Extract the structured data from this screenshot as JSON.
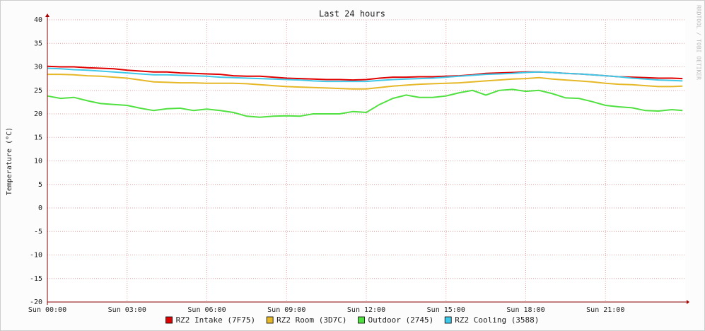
{
  "chart_data": {
    "type": "line",
    "title": "Last 24 hours",
    "y_label": "Temperature (°C)",
    "watermark": "RRDTOOL / TOBI OETIKER",
    "x": [
      0,
      0.5,
      1,
      1.5,
      2,
      2.5,
      3,
      3.5,
      4,
      4.5,
      5,
      5.5,
      6,
      6.5,
      7,
      7.5,
      8,
      8.5,
      9,
      9.5,
      10,
      10.5,
      11,
      11.5,
      12,
      12.5,
      13,
      13.5,
      14,
      14.5,
      15,
      15.5,
      16,
      16.5,
      17,
      17.5,
      18,
      18.5,
      19,
      19.5,
      20,
      20.5,
      21,
      21.5,
      22,
      22.5,
      23,
      23.5,
      23.9
    ],
    "series": [
      {
        "name": "RZ2 Intake (7F75)",
        "color": "#e00000",
        "values": [
          30.1,
          30.0,
          30.0,
          29.8,
          29.7,
          29.6,
          29.3,
          29.1,
          28.9,
          28.9,
          28.7,
          28.6,
          28.5,
          28.4,
          28.1,
          28.0,
          28.0,
          27.8,
          27.6,
          27.5,
          27.4,
          27.3,
          27.3,
          27.2,
          27.3,
          27.6,
          27.8,
          27.8,
          27.9,
          27.9,
          28.0,
          28.1,
          28.3,
          28.6,
          28.7,
          28.8,
          28.9,
          28.9,
          28.8,
          28.6,
          28.5,
          28.3,
          28.1,
          27.9,
          27.8,
          27.7,
          27.6,
          27.6,
          27.5
        ]
      },
      {
        "name": "RZ2 Room (3D7C)",
        "color": "#e6b828",
        "values": [
          28.4,
          28.4,
          28.3,
          28.1,
          28.0,
          27.8,
          27.6,
          27.2,
          26.8,
          26.7,
          26.6,
          26.6,
          26.5,
          26.5,
          26.5,
          26.4,
          26.2,
          26.0,
          25.8,
          25.7,
          25.6,
          25.5,
          25.4,
          25.3,
          25.3,
          25.6,
          25.9,
          26.1,
          26.3,
          26.4,
          26.5,
          26.6,
          26.8,
          27.0,
          27.2,
          27.4,
          27.5,
          27.7,
          27.4,
          27.2,
          27.0,
          26.8,
          26.5,
          26.3,
          26.2,
          26.0,
          25.8,
          25.8,
          25.9
        ]
      },
      {
        "name": "Outdoor (2745)",
        "color": "#50e040",
        "values": [
          23.8,
          23.3,
          23.5,
          22.8,
          22.2,
          22.0,
          21.8,
          21.2,
          20.7,
          21.1,
          21.2,
          20.7,
          21.0,
          20.7,
          20.3,
          19.5,
          19.3,
          19.5,
          19.6,
          19.5,
          20.0,
          20.0,
          20.0,
          20.5,
          20.3,
          22.0,
          23.3,
          24.0,
          23.5,
          23.5,
          23.8,
          24.5,
          25.0,
          24.0,
          25.0,
          25.2,
          24.8,
          25.0,
          24.3,
          23.4,
          23.3,
          22.6,
          21.8,
          21.5,
          21.3,
          20.7,
          20.6,
          20.9,
          20.7
        ]
      },
      {
        "name": "RZ2 Cooling (3588)",
        "color": "#40c8e8",
        "values": [
          29.7,
          29.6,
          29.4,
          29.3,
          29.1,
          28.9,
          28.7,
          28.5,
          28.3,
          28.3,
          28.2,
          28.1,
          28.0,
          27.8,
          27.7,
          27.6,
          27.5,
          27.4,
          27.3,
          27.2,
          27.0,
          26.9,
          26.9,
          26.9,
          26.9,
          27.1,
          27.3,
          27.4,
          27.5,
          27.6,
          27.8,
          28.0,
          28.2,
          28.4,
          28.5,
          28.6,
          28.8,
          28.9,
          28.8,
          28.6,
          28.5,
          28.3,
          28.1,
          27.9,
          27.6,
          27.4,
          27.2,
          27.1,
          27.0
        ]
      }
    ],
    "xlim": [
      0,
      24
    ],
    "xticks": [
      {
        "value": 0,
        "label": "Sun 00:00"
      },
      {
        "value": 3,
        "label": "Sun 03:00"
      },
      {
        "value": 6,
        "label": "Sun 06:00"
      },
      {
        "value": 9,
        "label": "Sun 09:00"
      },
      {
        "value": 12,
        "label": "Sun 12:00"
      },
      {
        "value": 15,
        "label": "Sun 15:00"
      },
      {
        "value": 18,
        "label": "Sun 18:00"
      },
      {
        "value": 21,
        "label": "Sun 21:00"
      }
    ],
    "ylim": [
      -20,
      40
    ],
    "yticks": [
      -20,
      -15,
      -10,
      -5,
      0,
      5,
      10,
      15,
      20,
      25,
      30,
      35,
      40
    ],
    "grid": true
  }
}
